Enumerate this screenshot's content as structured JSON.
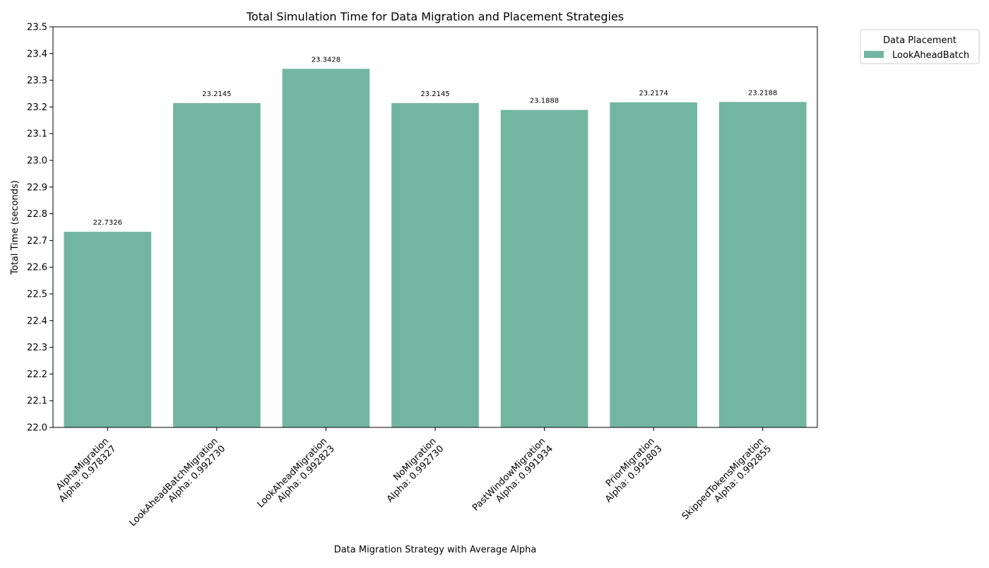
{
  "chart_data": {
    "type": "bar",
    "title": "Total Simulation Time for Data Migration and Placement Strategies",
    "xlabel": "Data Migration Strategy with Average Alpha",
    "ylabel": "Total Time (seconds)",
    "ylim": [
      22.0,
      23.5
    ],
    "yticks": [
      "22.0",
      "22.1",
      "22.2",
      "22.3",
      "22.4",
      "22.5",
      "22.6",
      "22.7",
      "22.8",
      "22.9",
      "23.0",
      "23.1",
      "23.2",
      "23.3",
      "23.4",
      "23.5"
    ],
    "categories": [
      {
        "name": "AlphaMigration",
        "alpha": "Alpha: 0.978327"
      },
      {
        "name": "LookAheadBatchMigration",
        "alpha": "Alpha: 0.992730"
      },
      {
        "name": "LookAheadMigration",
        "alpha": "Alpha: 0.992823"
      },
      {
        "name": "NoMigration",
        "alpha": "Alpha: 0.992730"
      },
      {
        "name": "PastWindowMigration",
        "alpha": "Alpha: 0.991934"
      },
      {
        "name": "PriorMigration",
        "alpha": "Alpha: 0.992803"
      },
      {
        "name": "SkippedTokensMigration",
        "alpha": "Alpha: 0.992855"
      }
    ],
    "series": [
      {
        "name": "LookAheadBatch",
        "color": "#72b6a1",
        "values": [
          22.7326,
          23.2145,
          23.3428,
          23.2145,
          23.1888,
          23.2174,
          23.2188
        ],
        "labels": [
          "22.7326",
          "23.2145",
          "23.3428",
          "23.2145",
          "23.1888",
          "23.2174",
          "23.2188"
        ]
      }
    ],
    "legend": {
      "title": "Data Placement",
      "placement": "outside top-right"
    },
    "grid": false
  }
}
